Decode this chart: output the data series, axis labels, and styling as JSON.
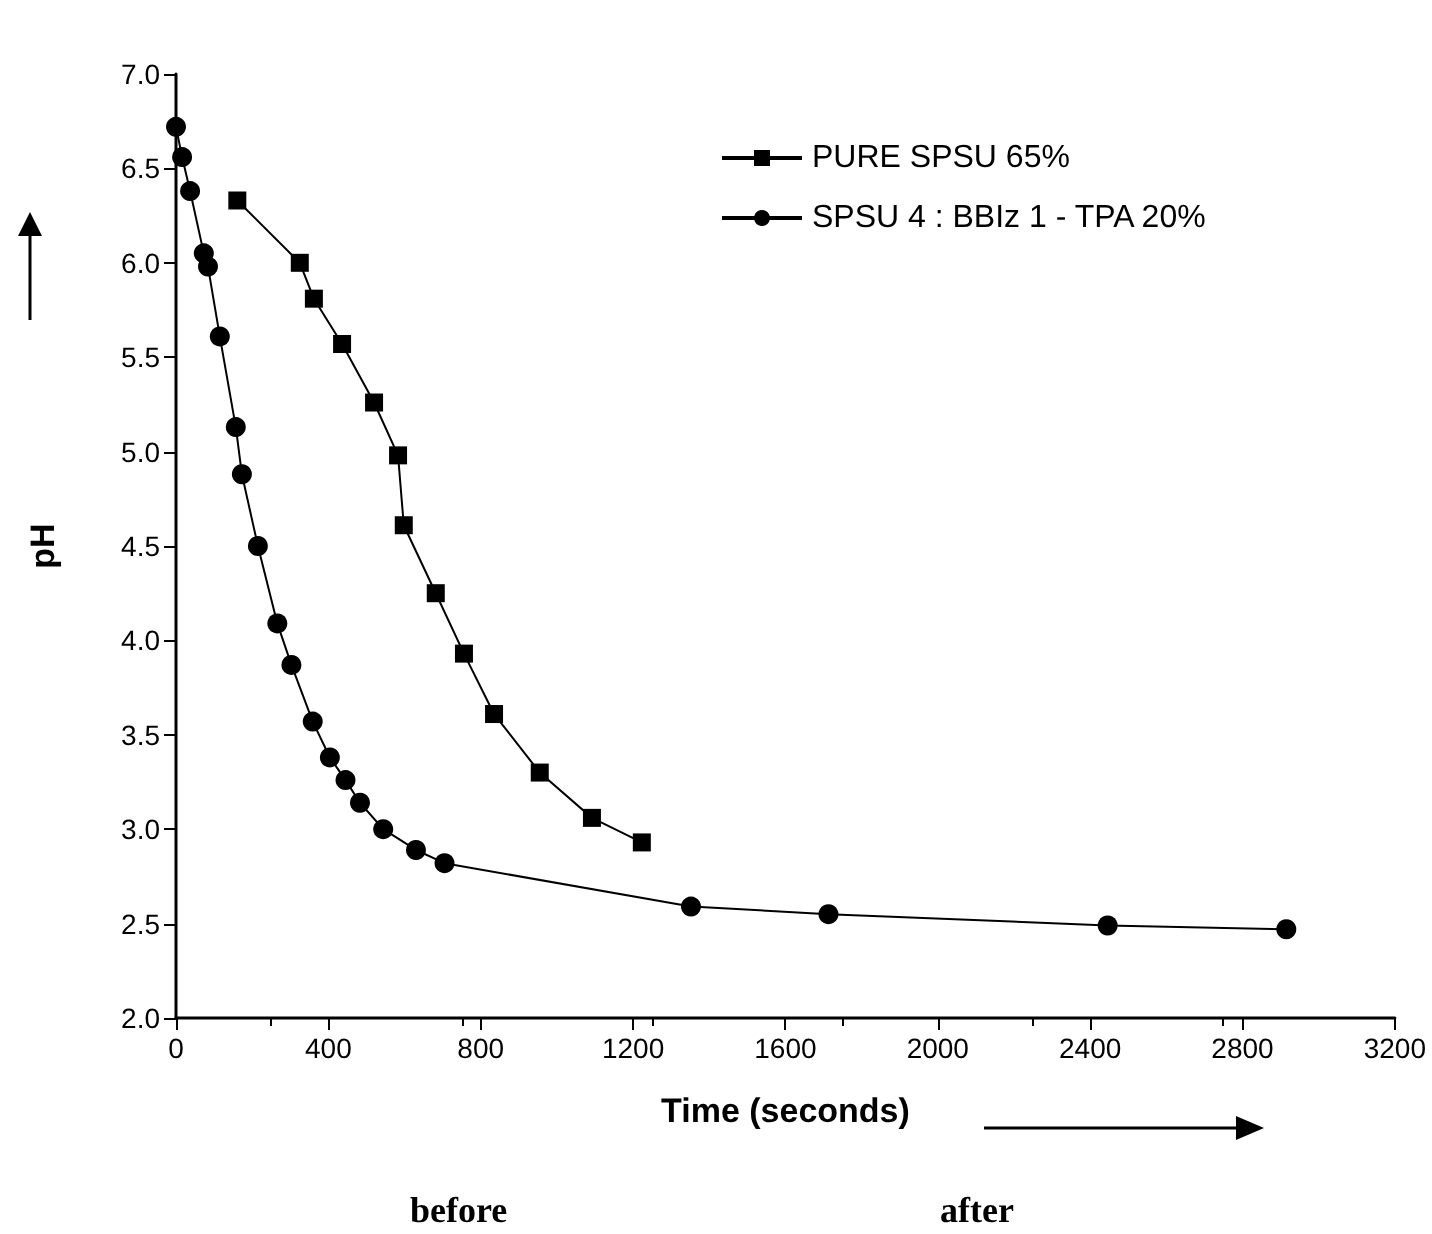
{
  "chart_data": {
    "type": "line",
    "xlabel": "Time (seconds)",
    "ylabel": "pH",
    "xlim": [
      0,
      3200
    ],
    "xticks": [
      0,
      400,
      800,
      1200,
      1600,
      2000,
      2400,
      2800,
      3200
    ],
    "ylim": [
      2.0,
      7.0
    ],
    "yticks": [
      {
        "value": 2.0,
        "label": "2.0"
      },
      {
        "value": 2.5,
        "label": "2.5"
      },
      {
        "value": 3.0,
        "label": "3.0"
      },
      {
        "value": 3.5,
        "label": "3.5"
      },
      {
        "value": 4.0,
        "label": "4.0"
      },
      {
        "value": 4.5,
        "label": "4.5"
      },
      {
        "value": 5.0,
        "label": "5.0"
      },
      {
        "value": 5.5,
        "label": "5.5"
      },
      {
        "value": 6.0,
        "label": "6.0"
      },
      {
        "value": 6.5,
        "label": "6.5"
      },
      {
        "value": 7.0,
        "label": "7.0"
      }
    ],
    "grid": false,
    "legend": "top right",
    "line_style": "solid",
    "series": [
      {
        "name": "PURE SPSU 65%",
        "color": "#000000",
        "marker": "square",
        "x": [
          161,
          325,
          362,
          436,
          520,
          583,
          598,
          682,
          756,
          835,
          955,
          1092,
          1223
        ],
        "values": [
          6.33,
          6.0,
          5.81,
          5.57,
          5.26,
          4.98,
          4.61,
          4.25,
          3.93,
          3.61,
          3.3,
          3.06,
          2.93
        ]
      },
      {
        "name": "SPSU 4 : BBIz 1 - TPA 20%",
        "color": "#000000",
        "marker": "circle",
        "x": [
          0,
          16,
          37,
          73,
          84,
          115,
          157,
          173,
          215,
          266,
          303,
          359,
          404,
          445,
          483,
          544,
          630,
          705,
          1352,
          1713,
          2446,
          2915
        ],
        "values": [
          6.72,
          6.56,
          6.38,
          6.05,
          5.98,
          5.61,
          5.13,
          4.88,
          4.5,
          4.09,
          3.87,
          3.57,
          3.38,
          3.26,
          3.14,
          3.0,
          2.89,
          2.82,
          2.59,
          2.55,
          2.49,
          2.47
        ]
      }
    ],
    "annotations": [
      "before",
      "after"
    ]
  }
}
